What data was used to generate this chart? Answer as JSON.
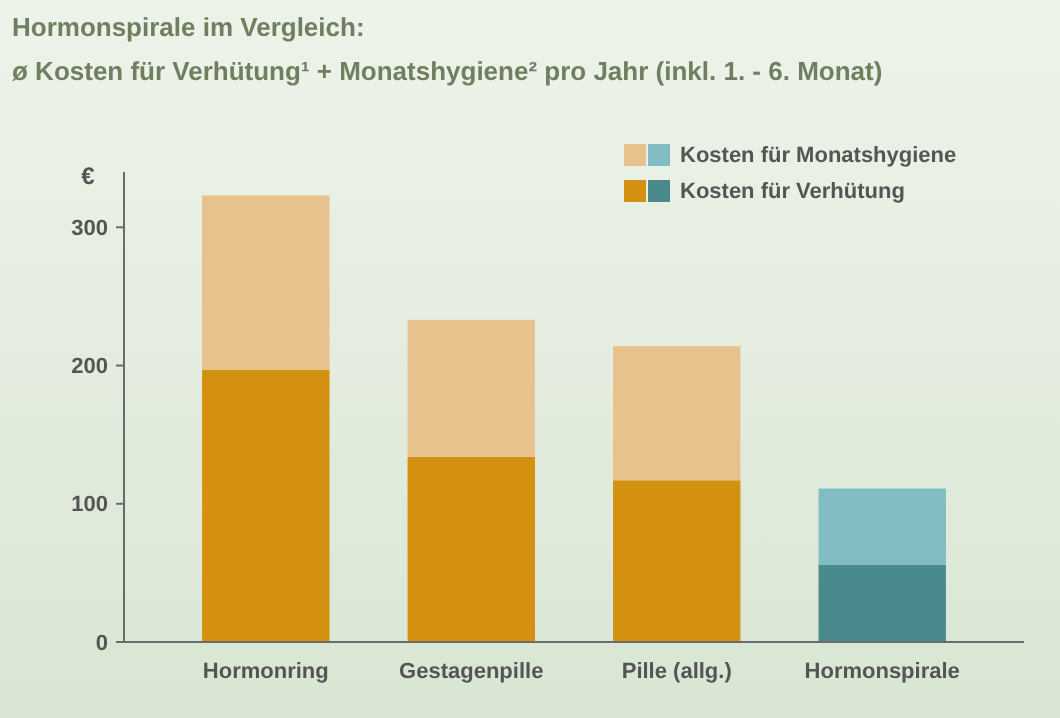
{
  "chart_data": {
    "type": "bar",
    "stacked": true,
    "title": "Hormonspirale im Vergleich:",
    "subtitle": "ø Kosten für Verhütung¹ + Monatshygiene² pro Jahr (inkl. 1. - 6. Monat)",
    "ylabel": "€",
    "categories": [
      "Hormonring",
      "Gestagenpille",
      "Pille (allg.)",
      "Hormonspirale"
    ],
    "series": [
      {
        "name": "Kosten für Verhütung",
        "color": "#d4900f",
        "colors": [
          "#d4900f",
          "#d4900f",
          "#d4900f",
          "#4a8a8c"
        ],
        "values": [
          197,
          134,
          117,
          56
        ]
      },
      {
        "name": "Kosten für Monatshygiene",
        "color": "#e8c28c",
        "colors": [
          "#e8c28c",
          "#e8c28c",
          "#e8c28c",
          "#80bcc2"
        ],
        "values": [
          126,
          99,
          97,
          55
        ]
      }
    ],
    "ylim": [
      0,
      340
    ],
    "yticks": [
      0,
      100,
      200,
      300
    ],
    "legend": "top right",
    "grid": false
  }
}
